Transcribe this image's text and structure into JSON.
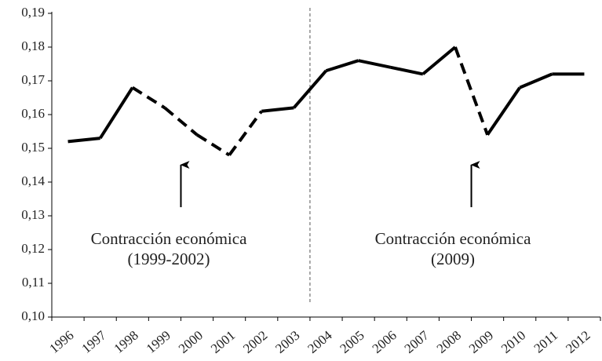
{
  "chart_data": {
    "type": "line",
    "categories": [
      "1996",
      "1997",
      "1998",
      "1999",
      "2000",
      "2001",
      "2002",
      "2003",
      "2004",
      "2005",
      "2006",
      "2007",
      "2008",
      "2009",
      "2010",
      "2011",
      "2012"
    ],
    "values": [
      0.152,
      0.153,
      0.168,
      0.162,
      0.154,
      0.148,
      0.161,
      0.162,
      0.173,
      0.176,
      0.174,
      0.172,
      0.18,
      0.154,
      0.168,
      0.172,
      0.172
    ],
    "segment_styles": [
      "solid",
      "solid",
      "dashed",
      "dashed",
      "dashed",
      "dashed",
      "solid",
      "solid",
      "solid",
      "solid",
      "solid",
      "solid",
      "dashed",
      "solid",
      "solid",
      "solid"
    ],
    "color": "#000000",
    "ylim": [
      0.1,
      0.19
    ],
    "yticks": [
      {
        "value": 0.1,
        "label": "0,10"
      },
      {
        "value": 0.11,
        "label": "0,11"
      },
      {
        "value": 0.12,
        "label": "0,12"
      },
      {
        "value": 0.13,
        "label": "0,13"
      },
      {
        "value": 0.14,
        "label": "0,14"
      },
      {
        "value": 0.15,
        "label": "0,15"
      },
      {
        "value": 0.16,
        "label": "0,16"
      },
      {
        "value": 0.17,
        "label": "0,17"
      },
      {
        "value": 0.18,
        "label": "0,18"
      },
      {
        "value": 0.19,
        "label": "0,19"
      }
    ],
    "grid": false,
    "annotations": [
      {
        "lines": [
          "Contracción económica",
          "(1999-2002)"
        ]
      },
      {
        "lines": [
          "Contracción económica",
          "(2009)"
        ]
      }
    ]
  }
}
